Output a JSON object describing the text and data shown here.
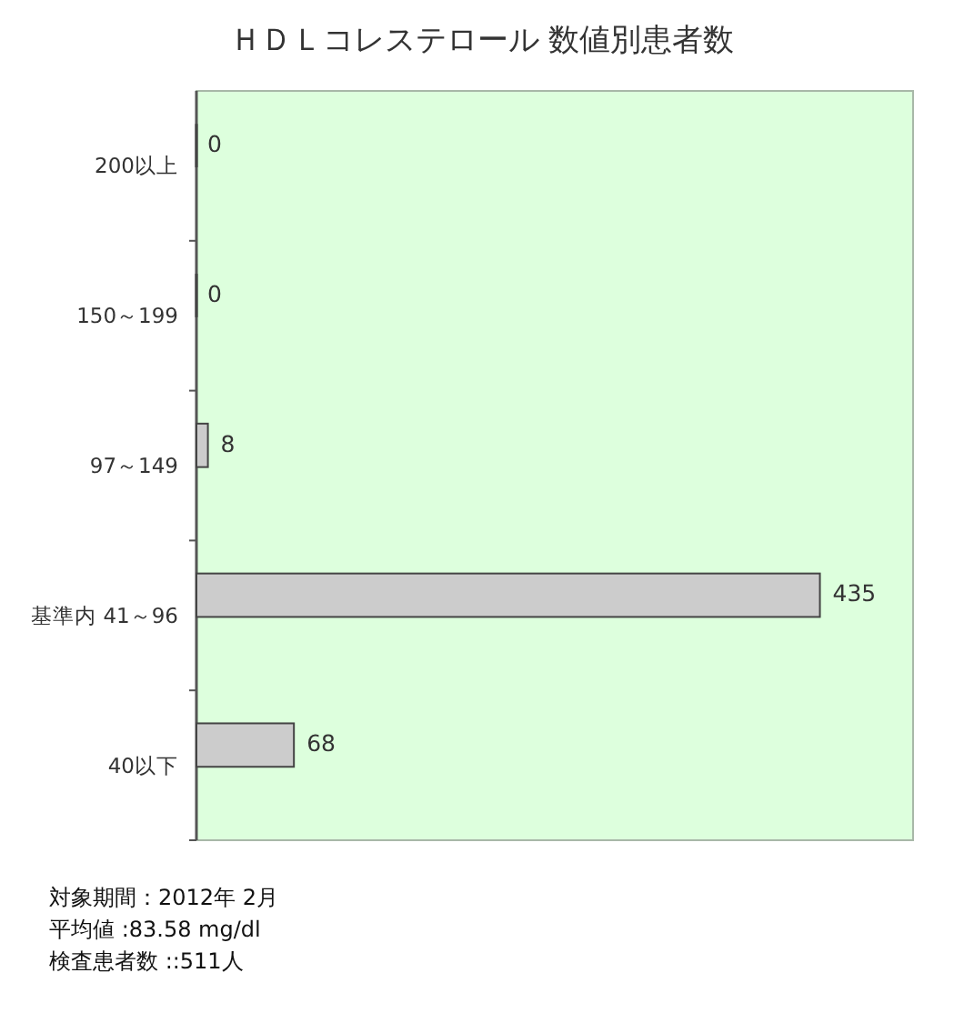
{
  "chart_data": {
    "type": "bar",
    "orientation": "horizontal",
    "title": "ＨＤＬコレステロール 数値別患者数",
    "categories": [
      "200以上",
      "150～199",
      "97～149",
      "基準内 41～96",
      "40以下"
    ],
    "values": [
      0,
      0,
      8,
      435,
      68
    ],
    "color": "#cccccc",
    "xlim": [
      0,
      500
    ],
    "data_labels": true,
    "tick_labels": "y",
    "annotations": [
      "対象期間：2012年 2月",
      "平均値 :83.58 mg/dl",
      "検査患者数 ::511人"
    ]
  }
}
